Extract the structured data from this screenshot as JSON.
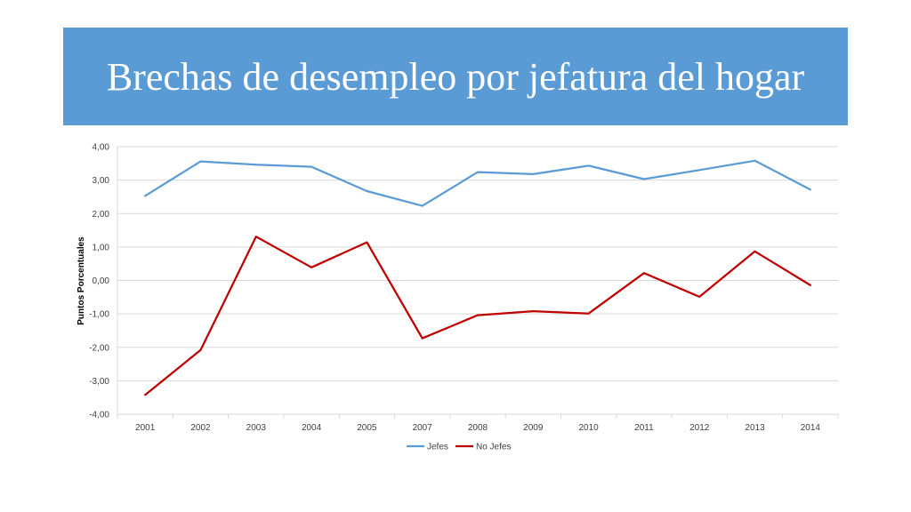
{
  "slide": {
    "title": "Brechas de desempleo por jefatura del hogar"
  },
  "chart_data": {
    "type": "line",
    "title": "",
    "xlabel": "",
    "ylabel": "Puntos Porcentuales",
    "categories": [
      "2001",
      "2002",
      "2003",
      "2004",
      "2005",
      "2007",
      "2008",
      "2009",
      "2010",
      "2011",
      "2012",
      "2013",
      "2014"
    ],
    "ylim": [
      -4,
      4
    ],
    "yticks": [
      4,
      3,
      2,
      1,
      0,
      -1,
      -2,
      -3,
      -4
    ],
    "ytick_labels": [
      "4,00",
      "3,00",
      "2,00",
      "1,00",
      "0,00",
      "-1,00",
      "-2,00",
      "-3,00",
      "-4,00"
    ],
    "grid": true,
    "legend_position": "bottom",
    "series": [
      {
        "name": "Jefes",
        "color": "#5b9bd5",
        "values": [
          2.53,
          3.56,
          3.46,
          3.4,
          2.67,
          2.23,
          3.24,
          3.18,
          3.43,
          3.03,
          3.3,
          3.58,
          2.72
        ]
      },
      {
        "name": "No Jefes",
        "color": "#c00000",
        "values": [
          -3.42,
          -2.08,
          1.31,
          0.39,
          1.14,
          -1.73,
          -1.04,
          -0.92,
          -0.99,
          0.22,
          -0.49,
          0.87,
          -0.14
        ]
      }
    ]
  }
}
